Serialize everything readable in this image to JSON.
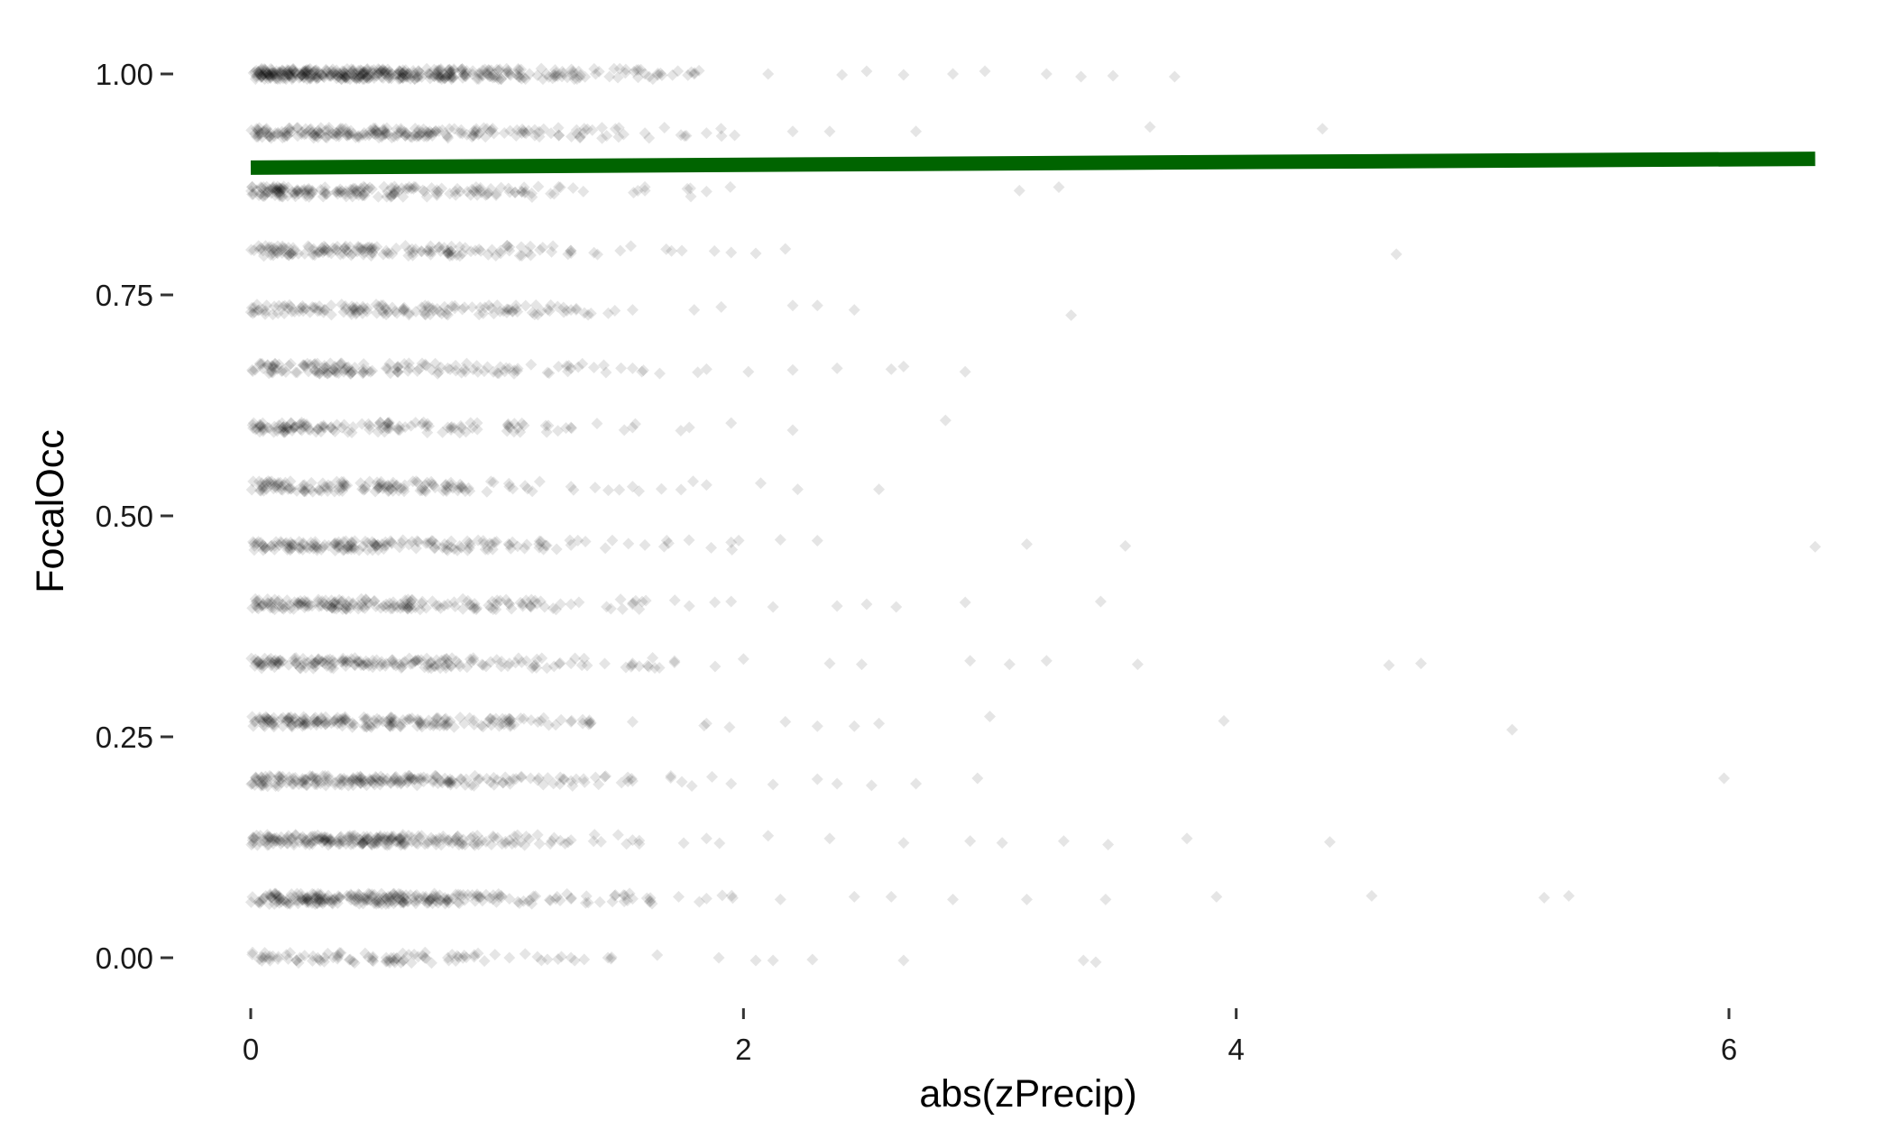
{
  "chart_data": {
    "type": "scatter",
    "title": "",
    "xlabel": "abs(zPrecip)",
    "ylabel": "FocalOcc",
    "xlim": [
      -0.2,
      6.6
    ],
    "ylim": [
      -0.05,
      1.05
    ],
    "x_ticks": [
      0,
      2,
      4,
      6
    ],
    "x_tick_labels": [
      "0",
      "2",
      "4",
      "6"
    ],
    "y_ticks": [
      0.0,
      0.25,
      0.5,
      0.75,
      1.0
    ],
    "y_tick_labels": [
      "0.00",
      "0.25",
      "0.50",
      "0.75",
      "1.00"
    ],
    "grid": false,
    "legend": "none",
    "point_color": "#000000",
    "point_opacity": 0.1,
    "point_shape": "diamond",
    "trend_line": {
      "color": "#006400",
      "x": [
        0,
        6.35
      ],
      "y": [
        0.894,
        0.904
      ]
    },
    "occupancy_levels": [
      0.0,
      0.0667,
      0.1333,
      0.2,
      0.2667,
      0.3333,
      0.4,
      0.4667,
      0.5333,
      0.6,
      0.6667,
      0.7333,
      0.8,
      0.8667,
      0.9333,
      1.0
    ],
    "series": [
      {
        "values": [
          [
            0.05,
            1.0
          ],
          [
            0.15,
            1.0
          ],
          [
            0.3,
            1.0
          ],
          [
            0.45,
            1.0
          ],
          [
            0.6,
            1.0
          ],
          [
            0.75,
            1.0
          ],
          [
            0.9,
            1.0
          ],
          [
            1.05,
            1.0
          ],
          [
            1.2,
            1.0
          ],
          [
            1.4,
            1.0
          ],
          [
            1.6,
            1.0
          ],
          [
            1.8,
            1.0
          ],
          [
            2.1,
            1.0
          ],
          [
            2.4,
            0.999
          ],
          [
            2.5,
            1.003
          ],
          [
            2.65,
            0.999
          ],
          [
            2.85,
            1.0
          ],
          [
            2.98,
            1.003
          ],
          [
            3.23,
            1.0
          ],
          [
            3.37,
            0.997
          ],
          [
            3.5,
            0.998
          ],
          [
            3.75,
            0.997
          ],
          [
            0.1,
            0.933
          ],
          [
            0.35,
            0.933
          ],
          [
            0.6,
            0.933
          ],
          [
            0.85,
            0.933
          ],
          [
            1.1,
            0.933
          ],
          [
            1.35,
            0.933
          ],
          [
            1.6,
            0.933
          ],
          [
            1.85,
            0.933
          ],
          [
            2.2,
            0.935
          ],
          [
            2.35,
            0.935
          ],
          [
            2.7,
            0.935
          ],
          [
            3.65,
            0.94
          ],
          [
            4.35,
            0.938
          ],
          [
            0.1,
            0.867
          ],
          [
            0.35,
            0.867
          ],
          [
            0.6,
            0.867
          ],
          [
            0.85,
            0.867
          ],
          [
            1.1,
            0.867
          ],
          [
            1.35,
            0.867
          ],
          [
            1.6,
            0.868
          ],
          [
            1.85,
            0.867
          ],
          [
            3.12,
            0.868
          ],
          [
            3.28,
            0.872
          ],
          [
            0.05,
            0.8
          ],
          [
            0.3,
            0.8
          ],
          [
            0.55,
            0.8
          ],
          [
            0.8,
            0.8
          ],
          [
            1.05,
            0.8
          ],
          [
            1.3,
            0.8
          ],
          [
            1.5,
            0.8
          ],
          [
            1.75,
            0.8
          ],
          [
            1.95,
            0.798
          ],
          [
            2.05,
            0.797
          ],
          [
            2.17,
            0.802
          ],
          [
            4.65,
            0.796
          ],
          [
            0.05,
            0.733
          ],
          [
            0.3,
            0.733
          ],
          [
            0.55,
            0.733
          ],
          [
            0.8,
            0.733
          ],
          [
            1.05,
            0.733
          ],
          [
            1.3,
            0.733
          ],
          [
            1.55,
            0.733
          ],
          [
            1.8,
            0.733
          ],
          [
            2.2,
            0.738
          ],
          [
            2.3,
            0.738
          ],
          [
            2.45,
            0.733
          ],
          [
            3.33,
            0.727
          ],
          [
            0.05,
            0.667
          ],
          [
            0.3,
            0.667
          ],
          [
            0.55,
            0.667
          ],
          [
            0.8,
            0.667
          ],
          [
            1.05,
            0.667
          ],
          [
            1.3,
            0.667
          ],
          [
            1.55,
            0.667
          ],
          [
            1.85,
            0.666
          ],
          [
            2.02,
            0.663
          ],
          [
            2.2,
            0.665
          ],
          [
            2.38,
            0.667
          ],
          [
            2.6,
            0.666
          ],
          [
            2.65,
            0.669
          ],
          [
            2.9,
            0.663
          ],
          [
            0.05,
            0.6
          ],
          [
            0.3,
            0.6
          ],
          [
            0.55,
            0.6
          ],
          [
            0.8,
            0.6
          ],
          [
            1.05,
            0.6
          ],
          [
            1.3,
            0.6
          ],
          [
            1.55,
            0.6
          ],
          [
            1.78,
            0.6
          ],
          [
            1.95,
            0.605
          ],
          [
            2.2,
            0.597
          ],
          [
            2.82,
            0.608
          ],
          [
            0.05,
            0.533
          ],
          [
            0.3,
            0.533
          ],
          [
            0.55,
            0.533
          ],
          [
            0.8,
            0.533
          ],
          [
            1.05,
            0.533
          ],
          [
            1.3,
            0.533
          ],
          [
            1.55,
            0.533
          ],
          [
            1.85,
            0.535
          ],
          [
            2.07,
            0.537
          ],
          [
            2.22,
            0.53
          ],
          [
            2.55,
            0.53
          ],
          [
            0.05,
            0.467
          ],
          [
            0.3,
            0.467
          ],
          [
            0.55,
            0.467
          ],
          [
            0.8,
            0.467
          ],
          [
            1.05,
            0.467
          ],
          [
            1.3,
            0.467
          ],
          [
            1.6,
            0.467
          ],
          [
            1.95,
            0.47
          ],
          [
            2.15,
            0.473
          ],
          [
            2.3,
            0.472
          ],
          [
            3.15,
            0.468
          ],
          [
            3.55,
            0.466
          ],
          [
            6.35,
            0.465
          ],
          [
            0.05,
            0.4
          ],
          [
            0.3,
            0.4
          ],
          [
            0.55,
            0.4
          ],
          [
            0.8,
            0.4
          ],
          [
            1.05,
            0.4
          ],
          [
            1.3,
            0.4
          ],
          [
            1.55,
            0.4
          ],
          [
            1.78,
            0.398
          ],
          [
            1.95,
            0.403
          ],
          [
            2.12,
            0.397
          ],
          [
            2.38,
            0.398
          ],
          [
            2.5,
            0.4
          ],
          [
            2.62,
            0.397
          ],
          [
            2.9,
            0.402
          ],
          [
            3.45,
            0.403
          ],
          [
            0.05,
            0.333
          ],
          [
            0.3,
            0.333
          ],
          [
            0.55,
            0.333
          ],
          [
            0.8,
            0.333
          ],
          [
            1.05,
            0.333
          ],
          [
            1.3,
            0.333
          ],
          [
            1.55,
            0.333
          ],
          [
            1.72,
            0.334
          ],
          [
            2.0,
            0.338
          ],
          [
            2.35,
            0.333
          ],
          [
            2.48,
            0.332
          ],
          [
            2.92,
            0.336
          ],
          [
            3.08,
            0.332
          ],
          [
            3.23,
            0.336
          ],
          [
            3.6,
            0.332
          ],
          [
            4.62,
            0.331
          ],
          [
            4.75,
            0.333
          ],
          [
            0.05,
            0.267
          ],
          [
            0.3,
            0.267
          ],
          [
            0.55,
            0.267
          ],
          [
            0.8,
            0.267
          ],
          [
            1.05,
            0.267
          ],
          [
            1.3,
            0.267
          ],
          [
            1.55,
            0.267
          ],
          [
            1.85,
            0.265
          ],
          [
            2.17,
            0.267
          ],
          [
            2.3,
            0.262
          ],
          [
            2.45,
            0.262
          ],
          [
            2.55,
            0.265
          ],
          [
            3.0,
            0.273
          ],
          [
            3.95,
            0.268
          ],
          [
            5.12,
            0.258
          ],
          [
            0.05,
            0.2
          ],
          [
            0.3,
            0.2
          ],
          [
            0.55,
            0.2
          ],
          [
            0.8,
            0.2
          ],
          [
            1.05,
            0.2
          ],
          [
            1.3,
            0.2
          ],
          [
            1.55,
            0.2
          ],
          [
            1.75,
            0.199
          ],
          [
            1.95,
            0.197
          ],
          [
            2.12,
            0.196
          ],
          [
            2.3,
            0.202
          ],
          [
            2.38,
            0.197
          ],
          [
            2.52,
            0.195
          ],
          [
            2.7,
            0.197
          ],
          [
            2.95,
            0.203
          ],
          [
            5.98,
            0.203
          ],
          [
            0.05,
            0.133
          ],
          [
            0.3,
            0.133
          ],
          [
            0.55,
            0.133
          ],
          [
            0.8,
            0.133
          ],
          [
            1.05,
            0.133
          ],
          [
            1.3,
            0.133
          ],
          [
            1.55,
            0.133
          ],
          [
            1.85,
            0.135
          ],
          [
            2.1,
            0.138
          ],
          [
            2.35,
            0.135
          ],
          [
            2.65,
            0.13
          ],
          [
            2.92,
            0.132
          ],
          [
            3.05,
            0.13
          ],
          [
            3.3,
            0.132
          ],
          [
            3.48,
            0.128
          ],
          [
            3.8,
            0.135
          ],
          [
            4.38,
            0.131
          ],
          [
            0.05,
            0.0667
          ],
          [
            0.3,
            0.0667
          ],
          [
            0.55,
            0.0667
          ],
          [
            0.8,
            0.0667
          ],
          [
            1.05,
            0.0667
          ],
          [
            1.3,
            0.0667
          ],
          [
            1.55,
            0.0667
          ],
          [
            1.85,
            0.067
          ],
          [
            2.15,
            0.066
          ],
          [
            2.45,
            0.069
          ],
          [
            2.6,
            0.069
          ],
          [
            2.85,
            0.066
          ],
          [
            3.15,
            0.066
          ],
          [
            3.47,
            0.066
          ],
          [
            3.92,
            0.069
          ],
          [
            4.55,
            0.07
          ],
          [
            5.25,
            0.068
          ],
          [
            5.35,
            0.07
          ],
          [
            0.05,
            0.0
          ],
          [
            0.3,
            0.0
          ],
          [
            0.55,
            0.0
          ],
          [
            0.8,
            0.0
          ],
          [
            1.05,
            0.0
          ],
          [
            1.3,
            0.0
          ],
          [
            1.45,
            0.0
          ],
          [
            1.65,
            0.003
          ],
          [
            1.9,
            0.0
          ],
          [
            2.05,
            -0.003
          ],
          [
            2.12,
            -0.003
          ],
          [
            2.28,
            -0.002
          ],
          [
            2.65,
            -0.003
          ],
          [
            3.38,
            -0.003
          ],
          [
            3.43,
            -0.005
          ]
        ]
      }
    ]
  }
}
